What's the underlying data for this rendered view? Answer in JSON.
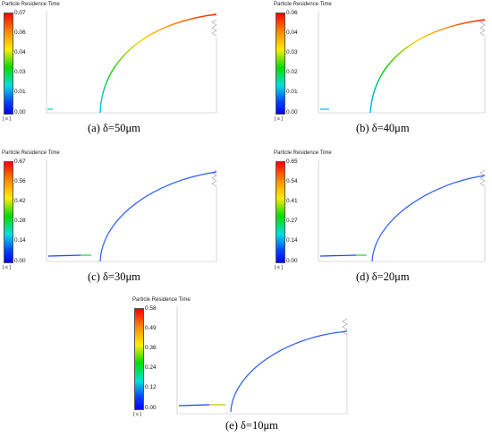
{
  "legend_title": "Particle Residence Time",
  "unit": "[ s ]",
  "panels": [
    {
      "caption": "(a) δ=50μm",
      "ticks": [
        "0.07",
        "0.06",
        "0.04",
        "0.03",
        "0.01",
        "0.00"
      ],
      "trajectory_colormap": "full-spectrum"
    },
    {
      "caption": "(b) δ=40μm",
      "ticks": [
        "0.06",
        "0.04",
        "0.03",
        "0.02",
        "0.01",
        "0.00"
      ],
      "trajectory_colormap": "full-spectrum"
    },
    {
      "caption": "(c) δ=30μm",
      "ticks": [
        "0.67",
        "0.56",
        "0.42",
        "0.28",
        "0.14",
        "0.00"
      ],
      "trajectory_colormap": "mostly-blue"
    },
    {
      "caption": "(d) δ=20μm",
      "ticks": [
        "0.65",
        "0.54",
        "0.41",
        "0.27",
        "0.14",
        "0.00"
      ],
      "trajectory_colormap": "mostly-blue"
    },
    {
      "caption": "(e) δ=10μm",
      "ticks": [
        "0.58",
        "0.49",
        "0.36",
        "0.24",
        "0.12",
        "0.00"
      ],
      "trajectory_colormap": "mostly-blue"
    }
  ]
}
